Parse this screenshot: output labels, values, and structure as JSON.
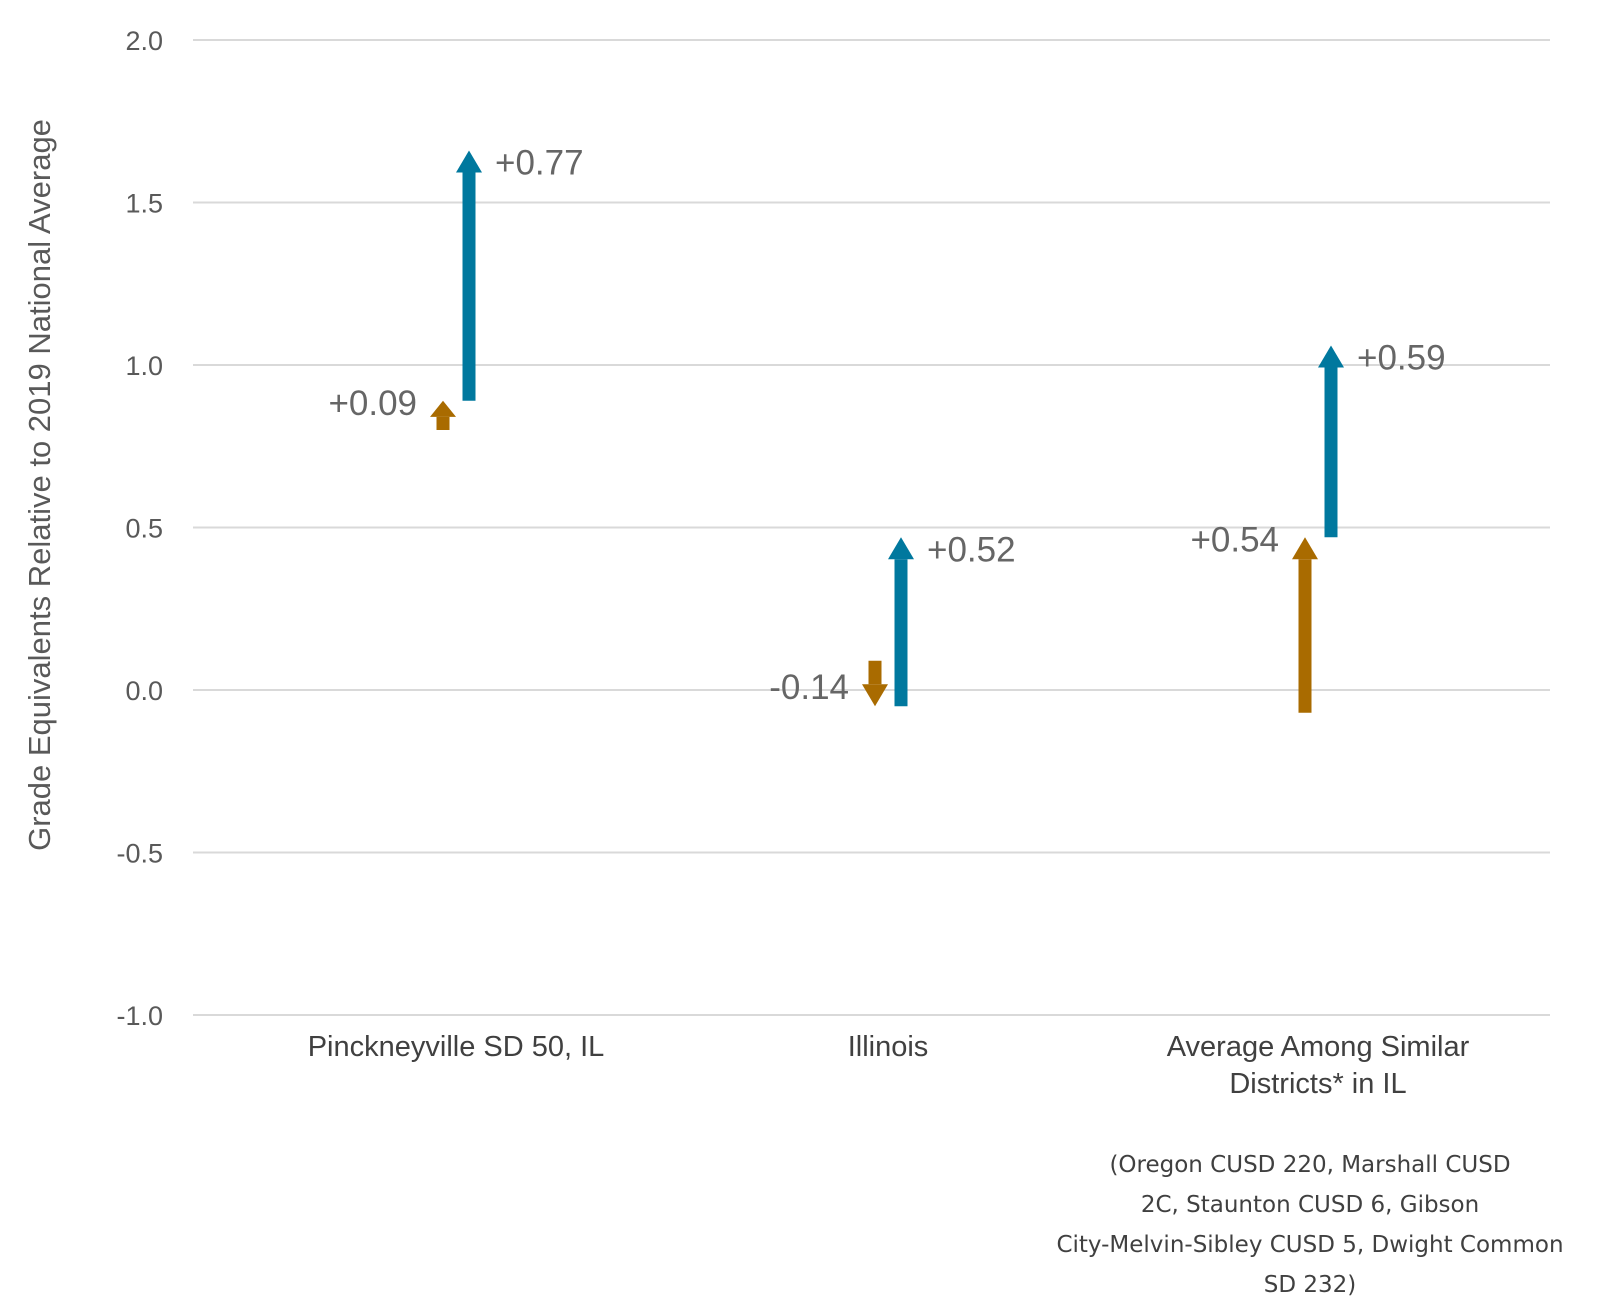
{
  "chart_data": {
    "type": "arrow",
    "ylabel": "Grade Equivalents Relative to 2019 National Average",
    "ylim": [
      -1.0,
      2.0
    ],
    "yticks": [
      "2.0",
      "1.5",
      "1.0",
      "0.5",
      "0.0",
      "-0.5",
      "-1.0"
    ],
    "grid": true,
    "colors": {
      "first_change": "#a96b00",
      "second_change": "#00789e"
    },
    "categories": [
      {
        "label": [
          "Pinckneyville SD 50, IL"
        ],
        "first_change": {
          "from": 0.8,
          "to": 0.89,
          "label": "+0.09"
        },
        "second_change": {
          "from": 0.89,
          "to": 1.66,
          "label": "+0.77"
        }
      },
      {
        "label": [
          "Illinois"
        ],
        "first_change": {
          "from": 0.09,
          "to": -0.05,
          "label": "-0.14"
        },
        "second_change": {
          "from": -0.05,
          "to": 0.47,
          "label": "+0.52"
        }
      },
      {
        "label": [
          "Average Among Similar",
          "Districts* in IL"
        ],
        "first_change": {
          "from": -0.07,
          "to": 0.47,
          "label": "+0.54"
        },
        "second_change": {
          "from": 0.47,
          "to": 1.06,
          "label": "+0.59"
        }
      }
    ],
    "note": [
      "(Oregon CUSD 220, Marshall CUSD",
      "2C, Staunton CUSD 6, Gibson",
      "City-Melvin-Sibley CUSD 5, Dwight Common",
      "SD 232)"
    ]
  }
}
